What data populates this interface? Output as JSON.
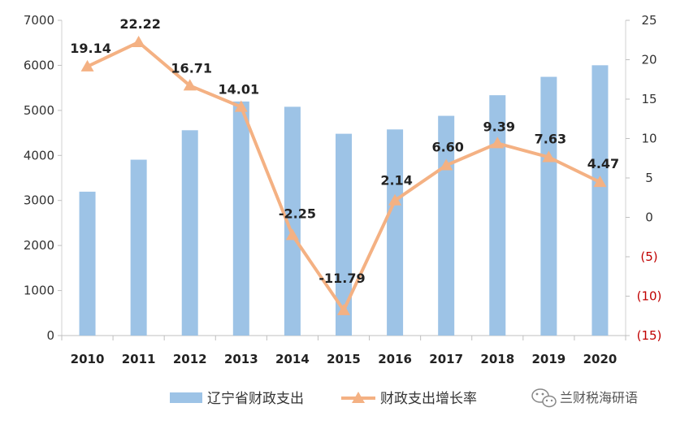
{
  "chart_data": {
    "type": "bar",
    "categories": [
      "2010",
      "2011",
      "2012",
      "2013",
      "2014",
      "2015",
      "2016",
      "2017",
      "2018",
      "2019",
      "2020"
    ],
    "series": [
      {
        "name": "辽宁省财政支出",
        "kind": "bar",
        "axis": "left",
        "color": "#9dc3e6",
        "values": [
          3195,
          3905,
          4559,
          5197,
          5080,
          4481,
          4577,
          4879,
          5337,
          5745,
          6002
        ]
      },
      {
        "name": "财政支出增长率",
        "kind": "line",
        "marker": "triangle",
        "axis": "right",
        "color": "#f4b183",
        "values": [
          19.14,
          22.22,
          16.71,
          14.01,
          -2.25,
          -11.79,
          2.14,
          6.6,
          9.39,
          7.63,
          4.47
        ],
        "labels": [
          "19.14",
          "22.22",
          "16.71",
          "14.01",
          "-2.25",
          "-11.79",
          "2.14",
          "6.60",
          "9.39",
          "7.63",
          "4.47"
        ]
      }
    ],
    "y_left": {
      "ylim": [
        0,
        7000
      ],
      "ticks": [
        0,
        1000,
        2000,
        3000,
        4000,
        5000,
        6000,
        7000
      ],
      "tick_labels": [
        "0",
        "1000",
        "2000",
        "3000",
        "4000",
        "5000",
        "6000",
        "7000"
      ]
    },
    "y_right": {
      "ylim": [
        -15,
        25
      ],
      "ticks": [
        -15,
        -10,
        -5,
        0,
        5,
        10,
        15,
        20,
        25
      ],
      "tick_labels": [
        "(15)",
        "(10)",
        "(5)",
        "0",
        "5",
        "10",
        "15",
        "20",
        "25"
      ],
      "negative_color": "#c00000",
      "positive_color": "#333333"
    },
    "grid": false,
    "legend": "bottom"
  },
  "watermark": {
    "text": "兰财税海研语",
    "icon": "wechat-icon"
  }
}
